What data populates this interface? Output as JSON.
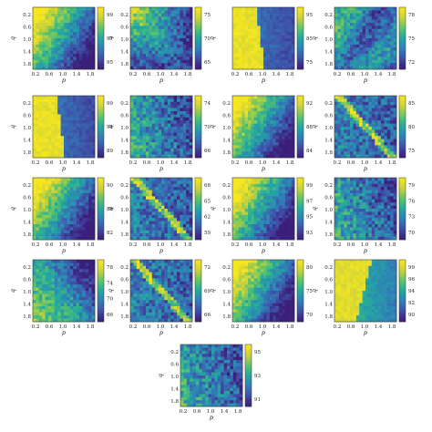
{
  "figure": {
    "description_free": true,
    "colormap": [
      "#3b1f7a",
      "#3f50a8",
      "#2f80b8",
      "#23a8a0",
      "#5cc46a",
      "#c9d13a",
      "#f6e620"
    ]
  },
  "chart_data": [
    {
      "type": "heatmap",
      "pattern": "diag_band_high_left",
      "xlabel": "p",
      "ylabel": "q",
      "x_ticks": [
        "0.2",
        "0.6",
        "1.0",
        "1.4",
        "1.8"
      ],
      "y_ticks": [
        "0.2",
        "0.6",
        "1.0",
        "1.4",
        "1.8"
      ],
      "colorbar_ticks": [
        "99",
        "97",
        "95"
      ],
      "zlim": [
        94,
        100
      ]
    },
    {
      "type": "heatmap",
      "pattern": "upper_left_high",
      "xlabel": "p",
      "ylabel": "q",
      "x_ticks": [
        "0.2",
        "0.6",
        "1.0",
        "1.4",
        "1.8"
      ],
      "y_ticks": [
        "0.2",
        "0.6",
        "1.0",
        "1.4",
        "1.8"
      ],
      "colorbar_ticks": [
        "75",
        "70",
        "65"
      ],
      "zlim": [
        62,
        77
      ]
    },
    {
      "type": "heatmap",
      "pattern": "left_yellow",
      "xlabel": "p",
      "ylabel": "q",
      "x_ticks": [
        "0.2",
        "0.6",
        "1.0",
        "1.4",
        "1.8"
      ],
      "y_ticks": [],
      "colorbar_ticks": [
        "95",
        "85",
        "75"
      ],
      "zlim": [
        74,
        97
      ]
    },
    {
      "type": "heatmap",
      "pattern": "mixed_mid",
      "xlabel": "p",
      "ylabel": "q",
      "x_ticks": [
        "0.2",
        "0.6",
        "1.0",
        "1.4",
        "1.8"
      ],
      "y_ticks": [
        "0.2",
        "0.6",
        "1.0",
        "1.4",
        "1.8"
      ],
      "colorbar_ticks": [
        "78",
        "75",
        "72"
      ],
      "zlim": [
        70,
        80
      ]
    },
    {
      "type": "heatmap",
      "pattern": "left_yellow",
      "xlabel": "p",
      "ylabel": "q",
      "x_ticks": [
        "0.2",
        "0.6",
        "1.0",
        "1.4",
        "1.8"
      ],
      "y_ticks": [
        "0.2",
        "0.6",
        "1.0",
        "1.4",
        "1.8"
      ],
      "colorbar_ticks": [
        "99",
        "94",
        "89"
      ],
      "zlim": [
        86,
        100
      ]
    },
    {
      "type": "heatmap",
      "pattern": "noisy_low",
      "xlabel": "p",
      "ylabel": "q",
      "x_ticks": [
        "0.2",
        "0.6",
        "1.0",
        "1.4",
        "1.8"
      ],
      "y_ticks": [
        "0.2",
        "0.6",
        "1.0",
        "1.4",
        "1.8"
      ],
      "colorbar_ticks": [
        "74",
        "70",
        "66"
      ],
      "zlim": [
        64,
        76
      ]
    },
    {
      "type": "heatmap",
      "pattern": "diag_band_high_left",
      "xlabel": "p",
      "ylabel": "q",
      "x_ticks": [
        "0.2",
        "0.6",
        "1.0",
        "1.4",
        "1.8"
      ],
      "y_ticks": [
        "0.2",
        "0.6",
        "1.0",
        "1.4",
        "1.8"
      ],
      "colorbar_ticks": [
        "92",
        "88",
        "84"
      ],
      "zlim": [
        83,
        94
      ]
    },
    {
      "type": "heatmap",
      "pattern": "diag_line",
      "xlabel": "p",
      "ylabel": "q",
      "x_ticks": [
        "0.2",
        "0.6",
        "1.0",
        "1.4",
        "1.8"
      ],
      "y_ticks": [
        "0.2",
        "0.6",
        "1.0",
        "1.4",
        "1.8"
      ],
      "colorbar_ticks": [
        "85",
        "80",
        "75"
      ],
      "zlim": [
        73,
        87
      ]
    },
    {
      "type": "heatmap",
      "pattern": "diag_band_high_left",
      "xlabel": "p",
      "ylabel": "q",
      "x_ticks": [
        "0.2",
        "0.6",
        "1.0",
        "1.4",
        "1.8"
      ],
      "y_ticks": [
        "0.2",
        "0.6",
        "1.0",
        "1.4",
        "1.8"
      ],
      "colorbar_ticks": [
        "90",
        "86",
        "82"
      ],
      "zlim": [
        81,
        92
      ]
    },
    {
      "type": "heatmap",
      "pattern": "diag_line",
      "xlabel": "p",
      "ylabel": "q",
      "x_ticks": [
        "0.2",
        "0.6",
        "1.0",
        "1.4",
        "1.8"
      ],
      "y_ticks": [
        "0.2",
        "0.6",
        "1.0",
        "1.4",
        "1.8"
      ],
      "colorbar_ticks": [
        "68",
        "65",
        "62",
        "59"
      ],
      "zlim": [
        58,
        70
      ]
    },
    {
      "type": "heatmap",
      "pattern": "diag_band_high_left",
      "xlabel": "p",
      "ylabel": "q",
      "x_ticks": [
        "0.2",
        "0.6",
        "1.0",
        "1.4",
        "1.8"
      ],
      "y_ticks": [
        "0.2",
        "0.6",
        "1.0",
        "1.4",
        "1.8"
      ],
      "colorbar_ticks": [
        "99",
        "97",
        "95",
        "93"
      ],
      "zlim": [
        92,
        100
      ]
    },
    {
      "type": "heatmap",
      "pattern": "noisy_low",
      "xlabel": "p",
      "ylabel": "q",
      "x_ticks": [
        "0.2",
        "0.6",
        "1.0",
        "1.4",
        "1.8"
      ],
      "y_ticks": [
        "0.2",
        "0.6",
        "1.0",
        "1.4",
        "1.8"
      ],
      "colorbar_ticks": [
        "79",
        "76",
        "73",
        "70"
      ],
      "zlim": [
        69,
        81
      ]
    },
    {
      "type": "heatmap",
      "pattern": "lower_left_mid",
      "xlabel": "p",
      "ylabel": "q",
      "x_ticks": [
        "0.2",
        "0.6",
        "1.0",
        "1.4",
        "1.8"
      ],
      "y_ticks": [
        "0.2",
        "0.6",
        "1.0",
        "1.4",
        "1.8"
      ],
      "colorbar_ticks": [
        "78",
        "74",
        "70",
        "66"
      ],
      "zlim": [
        65,
        80
      ]
    },
    {
      "type": "heatmap",
      "pattern": "diag_line",
      "xlabel": "p",
      "ylabel": "q",
      "x_ticks": [
        "0.2",
        "0.6",
        "1.0",
        "1.4",
        "1.8"
      ],
      "y_ticks": [
        "0.2",
        "0.6",
        "1.0",
        "1.4",
        "1.8"
      ],
      "colorbar_ticks": [
        "72",
        "69",
        "66"
      ],
      "zlim": [
        64,
        74
      ]
    },
    {
      "type": "heatmap",
      "pattern": "diag_band_high_left",
      "xlabel": "p",
      "ylabel": "q",
      "x_ticks": [
        "0.2",
        "0.6",
        "1.0",
        "1.4",
        "1.8"
      ],
      "y_ticks": [
        "0.2",
        "0.6",
        "1.0",
        "1.4",
        "1.8"
      ],
      "colorbar_ticks": [
        "80",
        "75",
        "70"
      ],
      "zlim": [
        68,
        82
      ]
    },
    {
      "type": "heatmap",
      "pattern": "left_yellow_right_teal",
      "xlabel": "p",
      "ylabel": "q",
      "x_ticks": [
        "0.2",
        "0.6",
        "1.0",
        "1.4",
        "1.8"
      ],
      "y_ticks": [
        "0.2",
        "0.6",
        "1.0",
        "1.4",
        "1.8"
      ],
      "colorbar_ticks": [
        "99",
        "96",
        "94",
        "92",
        "90"
      ],
      "zlim": [
        89,
        100
      ]
    },
    {
      "type": "heatmap",
      "pattern": "noisy_low",
      "xlabel": "p",
      "ylabel": "q",
      "x_ticks": [
        "0.2",
        "0.6",
        "1.0",
        "1.4",
        "1.8"
      ],
      "y_ticks": [
        "0.2",
        "0.6",
        "1.0",
        "1.4",
        "1.8"
      ],
      "colorbar_ticks": [
        "95",
        "93",
        "91"
      ],
      "zlim": [
        90,
        96
      ]
    }
  ]
}
